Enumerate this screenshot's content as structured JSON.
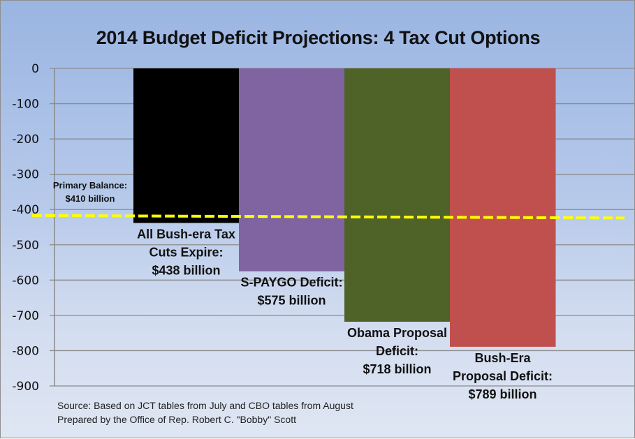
{
  "chart_data": {
    "type": "bar",
    "title": "2014 Budget Deficit Projections: 4 Tax Cut Options",
    "xlabel": "",
    "ylabel": "",
    "ylim": [
      -900,
      0
    ],
    "yticks": [
      0,
      -100,
      -200,
      -300,
      -400,
      -500,
      -600,
      -700,
      -800,
      -900
    ],
    "ytick_labels": [
      "0",
      "-100",
      "-200",
      "-300",
      "-400",
      "-500",
      "-600",
      "-700",
      "-800",
      "-900"
    ],
    "grid": true,
    "categories": [
      "All Bush-era Tax Cuts Expire",
      "S-PAYGO Deficit",
      "Obama Proposal Deficit",
      "Bush-Era Proposal Deficit"
    ],
    "values": [
      -438,
      -575,
      -718,
      -789
    ],
    "colors": [
      "#000000",
      "#8064a2",
      "#4f6228",
      "#c0504d"
    ],
    "data_labels": [
      [
        "All Bush-era Tax",
        "Cuts Expire:",
        "$438 billion"
      ],
      [
        "S-PAYGO Deficit:",
        "$575 billion"
      ],
      [
        "Obama Proposal",
        "Deficit:",
        "$718 billion"
      ],
      [
        "Bush-Era",
        "Proposal Deficit:",
        "$789 billion"
      ]
    ],
    "reference_line": {
      "label": [
        "Primary Balance:",
        "$410 billion"
      ],
      "value_start": -417,
      "value_end": -424,
      "style": "dashed",
      "color": "#ffff00"
    },
    "legend": "none"
  },
  "notes": {
    "source": "Source: Based on JCT tables from July and CBO tables from August",
    "prepared_by": "Prepared by the Office of Rep. Robert C. \"Bobby\" Scott"
  }
}
